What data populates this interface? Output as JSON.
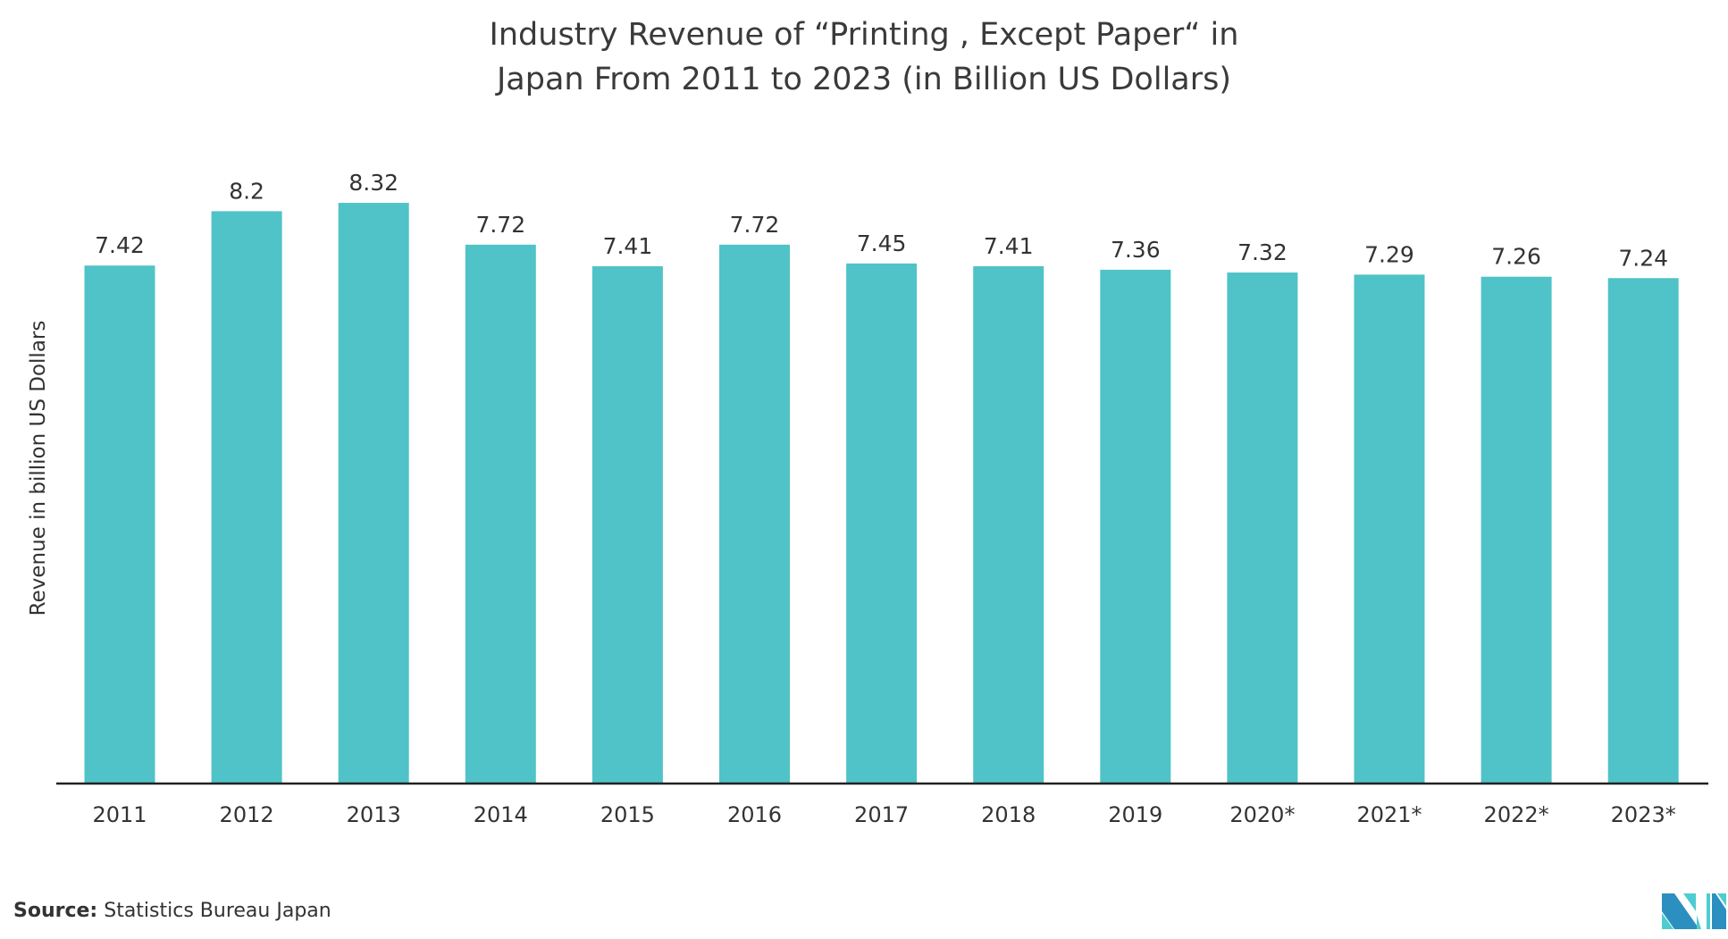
{
  "chart_data": {
    "type": "bar",
    "title": [
      "Industry Revenue of “Printing , Except Paper“ in",
      "Japan From 2011 to 2023 (in Billion US Dollars)"
    ],
    "xlabel": "",
    "ylabel": "Revenue in billion US Dollars",
    "categories": [
      "2011",
      "2012",
      "2013",
      "2014",
      "2015",
      "2016",
      "2017",
      "2018",
      "2019",
      "2020*",
      "2021*",
      "2022*",
      "2023*"
    ],
    "values": [
      7.42,
      8.2,
      8.32,
      7.72,
      7.41,
      7.72,
      7.45,
      7.41,
      7.36,
      7.32,
      7.29,
      7.26,
      7.24
    ],
    "data_labels": [
      "7.42",
      "8.2",
      "8.32",
      "7.72",
      "7.41",
      "7.72",
      "7.45",
      "7.41",
      "7.36",
      "7.32",
      "7.29",
      "7.26",
      "7.24"
    ],
    "ylim": [
      0,
      8.32
    ],
    "grid": false,
    "legend": "none",
    "bar_color": "#4fc3c8"
  },
  "source": {
    "label": "Source:",
    "text": "Statistics Bureau Japan"
  },
  "logo": {
    "colors": [
      "#2b90c0",
      "#4ecdd0"
    ]
  }
}
